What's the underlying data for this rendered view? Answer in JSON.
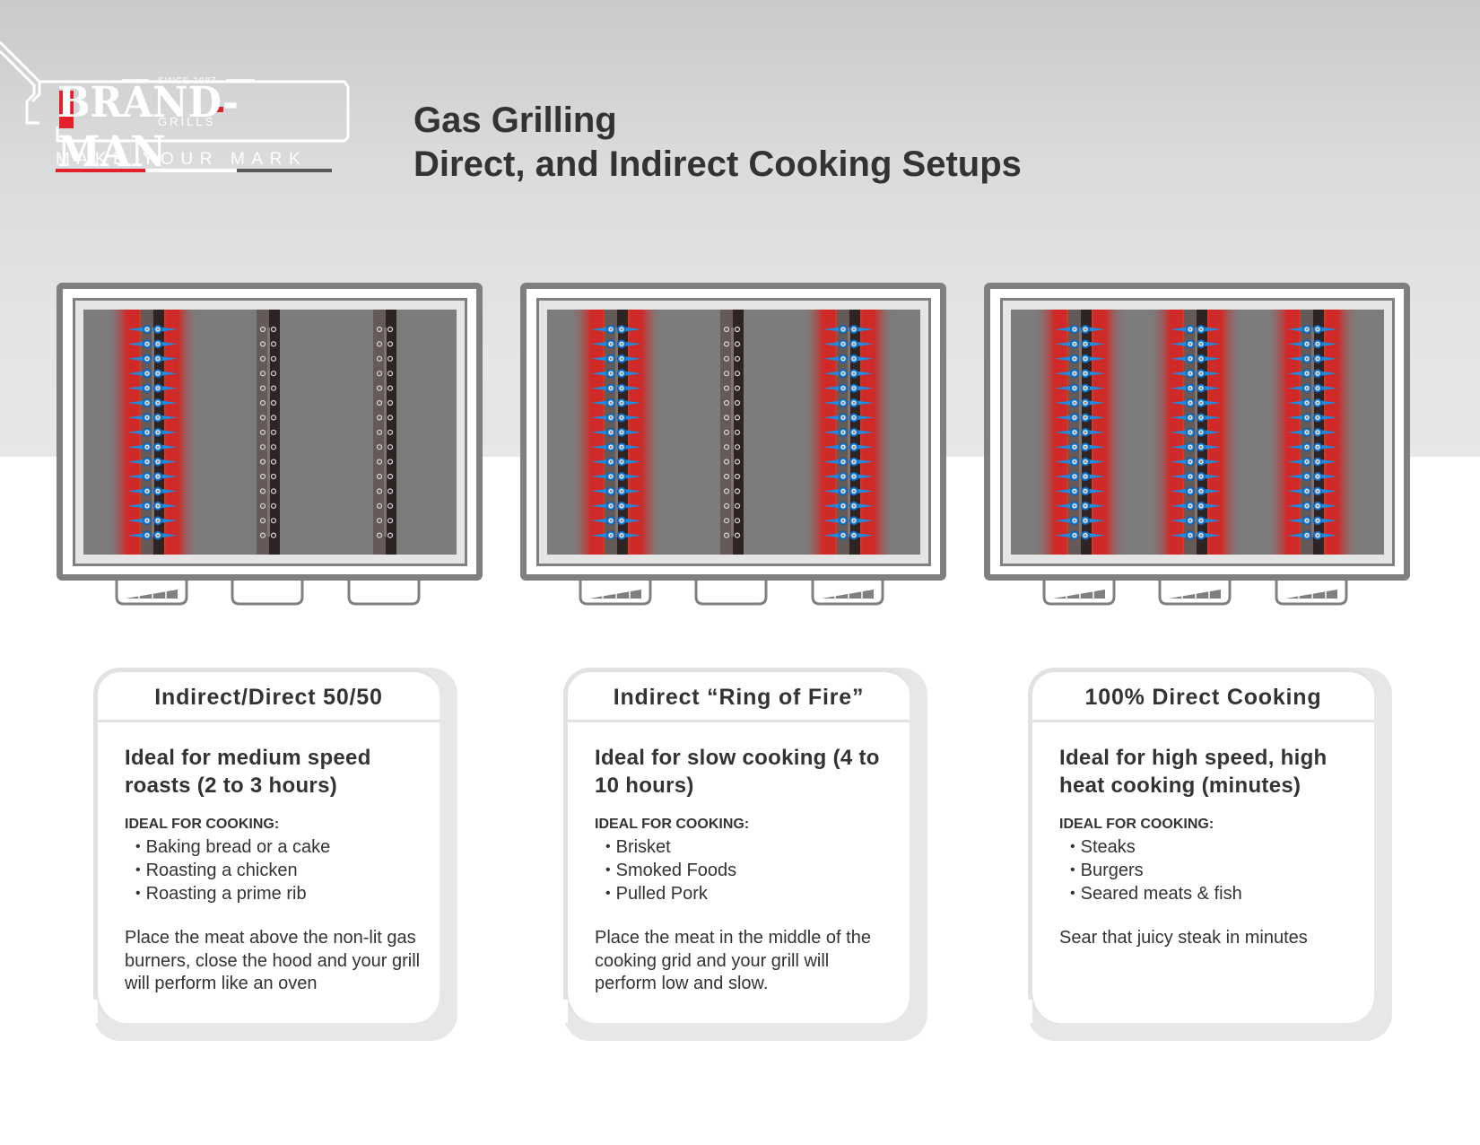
{
  "brand": {
    "since": "SINCE 1987",
    "name": "BRAND-MAN",
    "sub": "GRILLS",
    "tagline": "MAKE YOUR MARK",
    "colors": {
      "red": "#e3212a",
      "white": "#ffffff",
      "dark": "#58595b"
    }
  },
  "header": {
    "title_line1": "Gas Grilling",
    "title_line2": "Direct, and Indirect Cooking Setups"
  },
  "colors": {
    "grill_frame": "#7f7f7f",
    "grill_floor": "#7c7c7c",
    "burner_light": "#655a58",
    "burner_dark": "#2e2424",
    "flame_red": "#cf2a27",
    "flame_orange": "#ef7d1a",
    "flame_yellow": "#ffd200",
    "flame_blue": "#1e8be0",
    "text": "#333333"
  },
  "grills": [
    {
      "name": "indirect-direct-50-50",
      "burners_lit": [
        true,
        false,
        false
      ],
      "knob_settings": [
        "high",
        "off",
        "off"
      ]
    },
    {
      "name": "ring-of-fire",
      "burners_lit": [
        true,
        false,
        true
      ],
      "knob_settings": [
        "high",
        "off",
        "high"
      ]
    },
    {
      "name": "direct-100",
      "burners_lit": [
        true,
        true,
        true
      ],
      "knob_settings": [
        "high",
        "high",
        "high"
      ]
    }
  ],
  "ports_per_burner": 15,
  "cards": [
    {
      "title": "Indirect/Direct 50/50",
      "headline": "Ideal for medium speed roasts (2 to 3 hours)",
      "subhead": "IDEAL FOR COOKING:",
      "items": [
        "Baking bread or a cake",
        "Roasting a chicken",
        "Roasting a prime rib"
      ],
      "note": "Place the meat above the non-lit gas burners, close the hood and your grill will perform like an oven"
    },
    {
      "title": "Indirect “Ring of Fire”",
      "headline": "Ideal for slow cooking (4 to 10 hours)",
      "subhead": "IDEAL FOR COOKING:",
      "items": [
        "Brisket",
        "Smoked Foods",
        "Pulled Pork"
      ],
      "note": "Place the meat in the middle of the cooking grid and your grill will perform low and slow."
    },
    {
      "title": "100% Direct Cooking",
      "headline": "Ideal for high speed, high heat cooking (minutes)",
      "subhead": "IDEAL FOR COOKING:",
      "items": [
        "Steaks",
        "Burgers",
        "Seared meats & fish"
      ],
      "note": "Sear that juicy steak in minutes"
    }
  ],
  "bullet": "•"
}
